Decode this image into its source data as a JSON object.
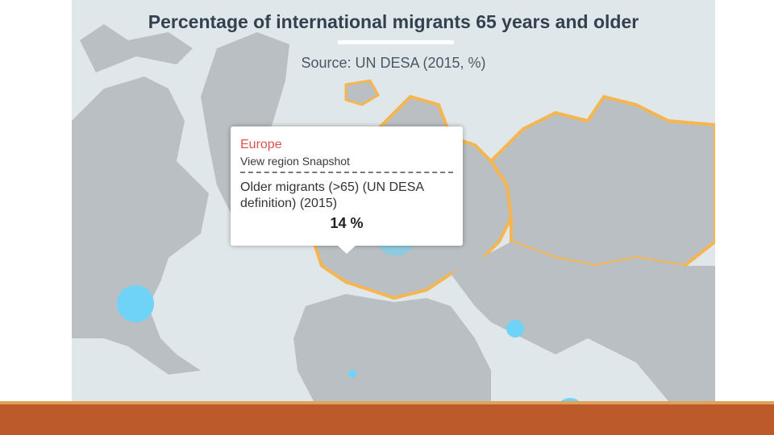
{
  "map": {
    "title": "Percentage of international migrants 65 years and older",
    "subtitle": "Source: UN DESA (2015, %)",
    "colors": {
      "ocean": "#dfe7ea",
      "land": "#b9bfc2",
      "highlight_border": "#f6b64f",
      "bubble": "#6fd3f7"
    }
  },
  "tooltip": {
    "region": "Europe",
    "link": "View region Snapshot",
    "metric": "Older migrants (>65) (UN DESA definition) (2015)",
    "value": "14 %"
  },
  "slide": {
    "footer_color": "#bd5a2a",
    "accent_color": "#e0a25a"
  }
}
